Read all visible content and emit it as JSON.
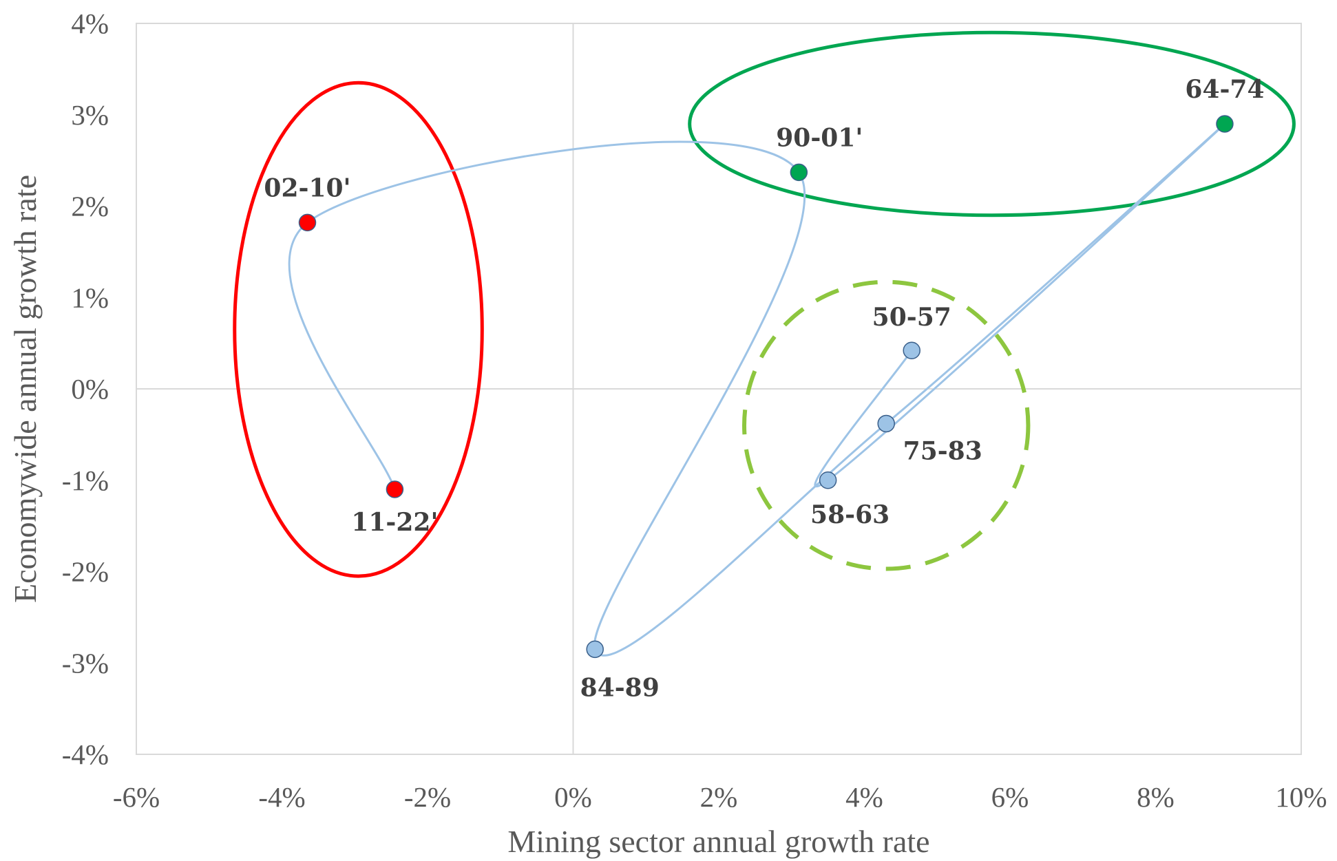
{
  "chart_data": {
    "type": "scatter",
    "title": "",
    "xlabel": "Mining sector annual growth rate",
    "ylabel": "Economywide annual growth rate",
    "xlim": [
      -6,
      10
    ],
    "ylim": [
      -4,
      4
    ],
    "x_ticks": [
      -6,
      -4,
      -2,
      0,
      2,
      4,
      6,
      8,
      10
    ],
    "y_ticks": [
      -4,
      -3,
      -2,
      -1,
      0,
      1,
      2,
      3,
      4
    ],
    "x_tick_labels": [
      "-6%",
      "-4%",
      "-2%",
      "0%",
      "2%",
      "4%",
      "6%",
      "8%",
      "10%"
    ],
    "y_tick_labels": [
      "-4%",
      "-3%",
      "-2%",
      "-1%",
      "0%",
      "1%",
      "2%",
      "3%",
      "4%"
    ],
    "grid": false,
    "connected": true,
    "line_color": "#9dc3e6",
    "points": [
      {
        "label": "50-57",
        "x": 4.65,
        "y": 0.42,
        "color": "#9dc3e6"
      },
      {
        "label": "58-63",
        "x": 3.5,
        "y": -1.0,
        "color": "#9dc3e6"
      },
      {
        "label": "64-74",
        "x": 8.95,
        "y": 2.9,
        "color": "#00a651"
      },
      {
        "label": "75-83",
        "x": 4.3,
        "y": -0.38,
        "color": "#9dc3e6"
      },
      {
        "label": "84-89",
        "x": 0.3,
        "y": -2.85,
        "color": "#9dc3e6"
      },
      {
        "label": "90-01'",
        "x": 3.1,
        "y": 2.37,
        "color": "#00a651"
      },
      {
        "label": "02-10'",
        "x": -3.65,
        "y": 1.82,
        "color": "#ff0000"
      },
      {
        "label": "11-22'",
        "x": -2.45,
        "y": -1.1,
        "color": "#ff0000"
      }
    ],
    "annotations": [
      {
        "shape": "ellipse",
        "style": "solid",
        "color": "#ff0000",
        "cx": -2.95,
        "cy": 0.65,
        "rx": 1.7,
        "ry": 2.7
      },
      {
        "shape": "ellipse",
        "style": "solid",
        "color": "#00a651",
        "cx": 5.75,
        "cy": 2.9,
        "rx": 4.15,
        "ry": 1.0
      },
      {
        "shape": "ellipse",
        "style": "dashed",
        "color": "#8dc63f",
        "cx": 4.3,
        "cy": -0.4,
        "rx": 1.95,
        "ry": 1.57
      }
    ]
  }
}
